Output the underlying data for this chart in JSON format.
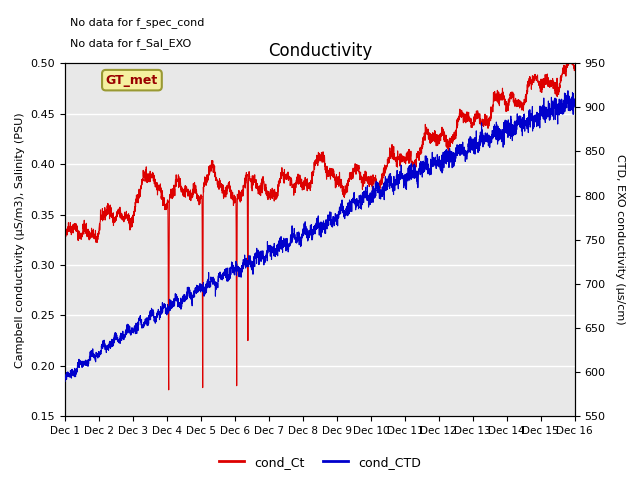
{
  "title": "Conductivity",
  "ylabel_left": "Campbell conductivity (µS/m3), Salinity (PSU)",
  "ylabel_right": "CTD, EXO conductivity (µs/cm)",
  "ylim_left": [
    0.15,
    0.5
  ],
  "ylim_right": [
    550,
    950
  ],
  "xtick_labels": [
    "Dec 1",
    "Dec 2",
    "Dec 3",
    "Dec 4",
    "Dec 5",
    "Dec 6",
    "Dec 7",
    "Dec 8",
    "Dec 9",
    "Dec 10",
    "Dec 11",
    "Dec 12",
    "Dec 13",
    "Dec 14",
    "Dec 15",
    "Dec 16"
  ],
  "yticks_left": [
    0.15,
    0.2,
    0.25,
    0.3,
    0.35,
    0.4,
    0.45,
    0.5
  ],
  "yticks_right": [
    550,
    600,
    650,
    700,
    750,
    800,
    850,
    900,
    950
  ],
  "bg_color": "#e8e8e8",
  "fig_bg": "#ffffff",
  "red_color": "#dd0000",
  "blue_color": "#0000cc",
  "legend_labels": [
    "cond_Ct",
    "cond_CTD"
  ],
  "gt_met_label": "GT_met",
  "note1": "No data for f_spec_cond",
  "note2": "No data for f_Sal_EXO",
  "line_width": 0.8
}
